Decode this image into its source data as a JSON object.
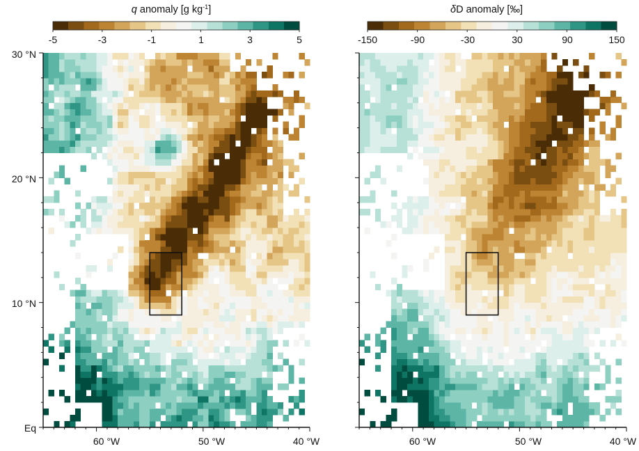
{
  "figure": {
    "colormap": [
      "#4a2d07",
      "#7a4d10",
      "#a2681b",
      "#bd8434",
      "#d3a55a",
      "#e5c687",
      "#f2e0b6",
      "#f6efe0",
      "#f4f5f3",
      "#dcefeb",
      "#b7e0d7",
      "#8dd0c2",
      "#5cb5a5",
      "#2f9585",
      "#0e7463",
      "#004d40"
    ],
    "region_box": {
      "lon": [
        -55,
        -52
      ],
      "lat": [
        9,
        14
      ]
    },
    "y_tick_labels": [
      "30 °N",
      "20 °N",
      "10 °N",
      "Eq"
    ],
    "x_tick_labels": [
      "60 °W",
      "50 °W",
      "40 °W"
    ]
  },
  "chart_data": [
    {
      "type": "heatmap",
      "title_italic": "q",
      "title_rest": " anomaly [g kg",
      "title_sup": "-1",
      "title_close": "]",
      "colorbar_range": [
        -5,
        5
      ],
      "colorbar_tick_labels": [
        "-5",
        "-3",
        "-1",
        "1",
        "3",
        "5"
      ],
      "xlim": [
        -65,
        -40
      ],
      "ylim": [
        0,
        30
      ],
      "grid_resolution_deg": 0.5,
      "field_model": {
        "sign_convention": "positive = moister (teal), negative = drier (brown)",
        "dry_band_center_start": [
          -54.5,
          12
        ],
        "dry_band_center_end": [
          -43,
          27
        ],
        "dry_band_peak": -4.5,
        "moist_eddy_center": [
          -53.5,
          22.5
        ],
        "moist_eddy_peak": 3.5,
        "west_moist_peak": 3,
        "south_moist_peak": 3.5
      }
    },
    {
      "type": "heatmap",
      "title_italic": "δ",
      "title_rest": "D anomaly [‰]",
      "title_sup": "",
      "title_close": "",
      "colorbar_range": [
        -150,
        150
      ],
      "colorbar_tick_labels": [
        "-150",
        "-90",
        "-30",
        "30",
        "90",
        "150"
      ],
      "xlim": [
        -65,
        -40
      ],
      "ylim": [
        0,
        30
      ],
      "grid_resolution_deg": 0.5,
      "field_model": {
        "sign_convention": "positive = isotopically enriched (teal), negative = depleted (brown)",
        "depleted_band_center_start": [
          -53.5,
          12
        ],
        "depleted_band_center_end": [
          -45,
          27
        ],
        "depleted_band_peak": -100,
        "enriched_eddy_center": [
          -53.5,
          22.5
        ],
        "enriched_eddy_peak": 40,
        "west_enriched_peak": 80,
        "south_enriched_peak": 100
      }
    }
  ]
}
